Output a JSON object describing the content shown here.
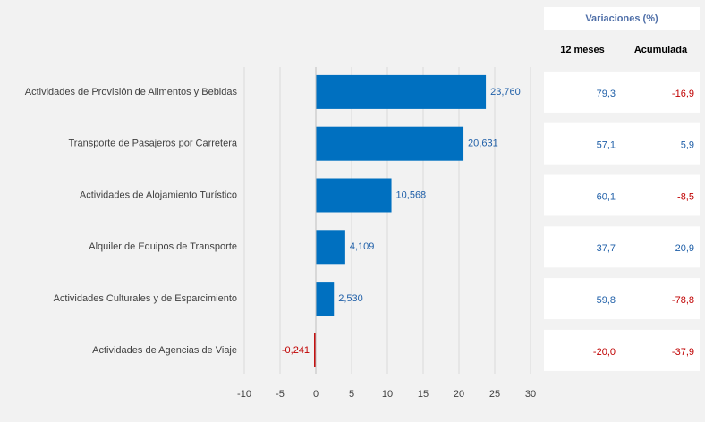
{
  "chart_data": {
    "type": "bar",
    "orientation": "horizontal",
    "categories": [
      "Actividades de Provisión de Alimentos y Bebidas",
      "Transporte de Pasajeros por Carretera",
      "Actividades de Alojamiento Turístico",
      "Alquiler de Equipos de Transporte",
      "Actividades Culturales y de Esparcimiento",
      "Actividades de Agencias de Viaje"
    ],
    "values": [
      23.76,
      20.631,
      10.568,
      4.109,
      2.53,
      -0.241
    ],
    "value_labels": [
      "23,760",
      "20,631",
      "10,568",
      "4,109",
      "2,530",
      "-0,241"
    ],
    "color": "#0070c0",
    "negative_color": "#c00000",
    "xlim": [
      -10,
      30
    ],
    "xticks": [
      -10,
      -5,
      0,
      5,
      10,
      15,
      20,
      25,
      30
    ],
    "grid": true,
    "table": {
      "title": "Variaciones (%)",
      "columns": [
        "12 meses",
        "Acumulada"
      ],
      "rows": [
        [
          "79,3",
          "-16,9"
        ],
        [
          "57,1",
          "5,9"
        ],
        [
          "60,1",
          "-8,5"
        ],
        [
          "37,7",
          "20,9"
        ],
        [
          "59,8",
          "-78,8"
        ],
        [
          "-20,0",
          "-37,9"
        ]
      ]
    }
  }
}
